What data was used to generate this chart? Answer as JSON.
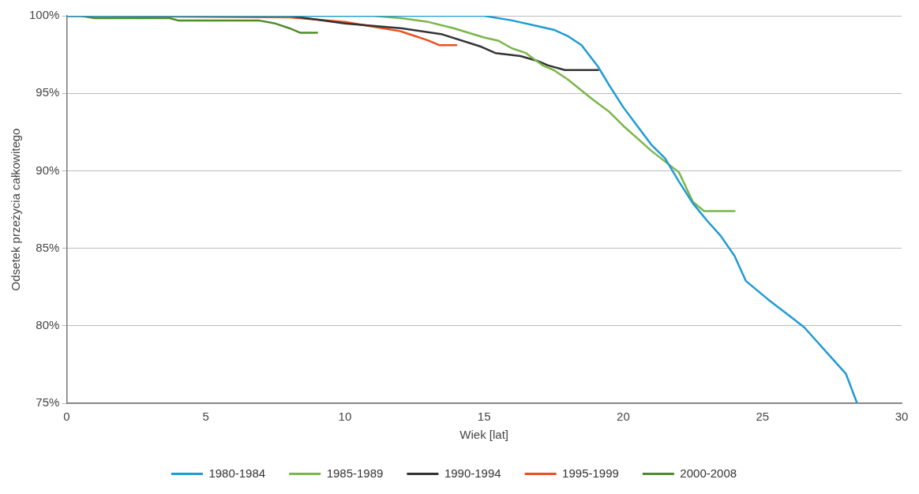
{
  "chart_data": {
    "type": "line",
    "xlabel": "Wiek [lat]",
    "ylabel": "Odsetek przeżycia całkowitego",
    "xlim": [
      0,
      30
    ],
    "xticks": [
      0,
      5,
      10,
      15,
      20,
      25,
      30
    ],
    "ylim": [
      75,
      100
    ],
    "yticks": [
      {
        "value": 75,
        "label": "75%"
      },
      {
        "value": 80,
        "label": "80%"
      },
      {
        "value": 85,
        "label": "85%"
      },
      {
        "value": 90,
        "label": "90%"
      },
      {
        "value": 95,
        "label": "95%"
      },
      {
        "value": 100,
        "label": "100%"
      }
    ],
    "grid": "y",
    "legend": "bottom",
    "marker": "none",
    "line_style": "solid",
    "series": [
      {
        "name": "1980-1984",
        "color": "#1f9ad6",
        "x": [
          0,
          14,
          15,
          16,
          17,
          17.5,
          18,
          18.5,
          19.1,
          19.5,
          20,
          20.5,
          21,
          21.5,
          22,
          22.5,
          23,
          23.5,
          24,
          24.4,
          25.2,
          26,
          26.5,
          26.9,
          27.5,
          28,
          28.4
        ],
        "values": [
          100,
          100,
          100,
          99.7,
          99.3,
          99.1,
          98.7,
          98.1,
          96.7,
          95.5,
          94.1,
          92.9,
          91.7,
          90.8,
          89.3,
          87.9,
          86.8,
          85.8,
          84.5,
          82.9,
          81.7,
          80.6,
          79.9,
          79.1,
          77.9,
          76.9,
          75
        ]
      },
      {
        "name": "1985-1989",
        "color": "#7ab648",
        "x": [
          0,
          11,
          12,
          13,
          13.9,
          15,
          15.5,
          16,
          16.5,
          17.1,
          17.5,
          18,
          18.9,
          19.5,
          20,
          20.5,
          21,
          21.5,
          22,
          22.5,
          22.9,
          24
        ],
        "values": [
          100,
          100,
          99.85,
          99.6,
          99.2,
          98.6,
          98.4,
          97.9,
          97.6,
          96.8,
          96.5,
          95.9,
          94.6,
          93.8,
          92.9,
          92.1,
          91.3,
          90.6,
          89.9,
          88.0,
          87.4,
          87.4
        ]
      },
      {
        "name": "1990-1994",
        "color": "#333333",
        "x": [
          0,
          8,
          10,
          12,
          13.5,
          14.9,
          15.4,
          16.3,
          16.9,
          17.3,
          17.9,
          19.1
        ],
        "values": [
          100,
          100,
          99.5,
          99.2,
          98.8,
          98.0,
          97.6,
          97.4,
          97.1,
          96.8,
          96.5,
          96.5
        ]
      },
      {
        "name": "1995-1999",
        "color": "#e8501e",
        "x": [
          0,
          8,
          10,
          11,
          12,
          12.5,
          13,
          13.4,
          14
        ],
        "values": [
          100,
          99.9,
          99.6,
          99.3,
          99.0,
          98.7,
          98.4,
          98.1,
          98.1
        ]
      },
      {
        "name": "2000-2008",
        "color": "#4e8c2a",
        "x": [
          0,
          0.5,
          1,
          3.7,
          4,
          6.9,
          7.5,
          8,
          8.4,
          9
        ],
        "values": [
          100,
          100,
          99.85,
          99.85,
          99.7,
          99.7,
          99.5,
          99.2,
          98.9,
          98.9
        ]
      }
    ]
  }
}
